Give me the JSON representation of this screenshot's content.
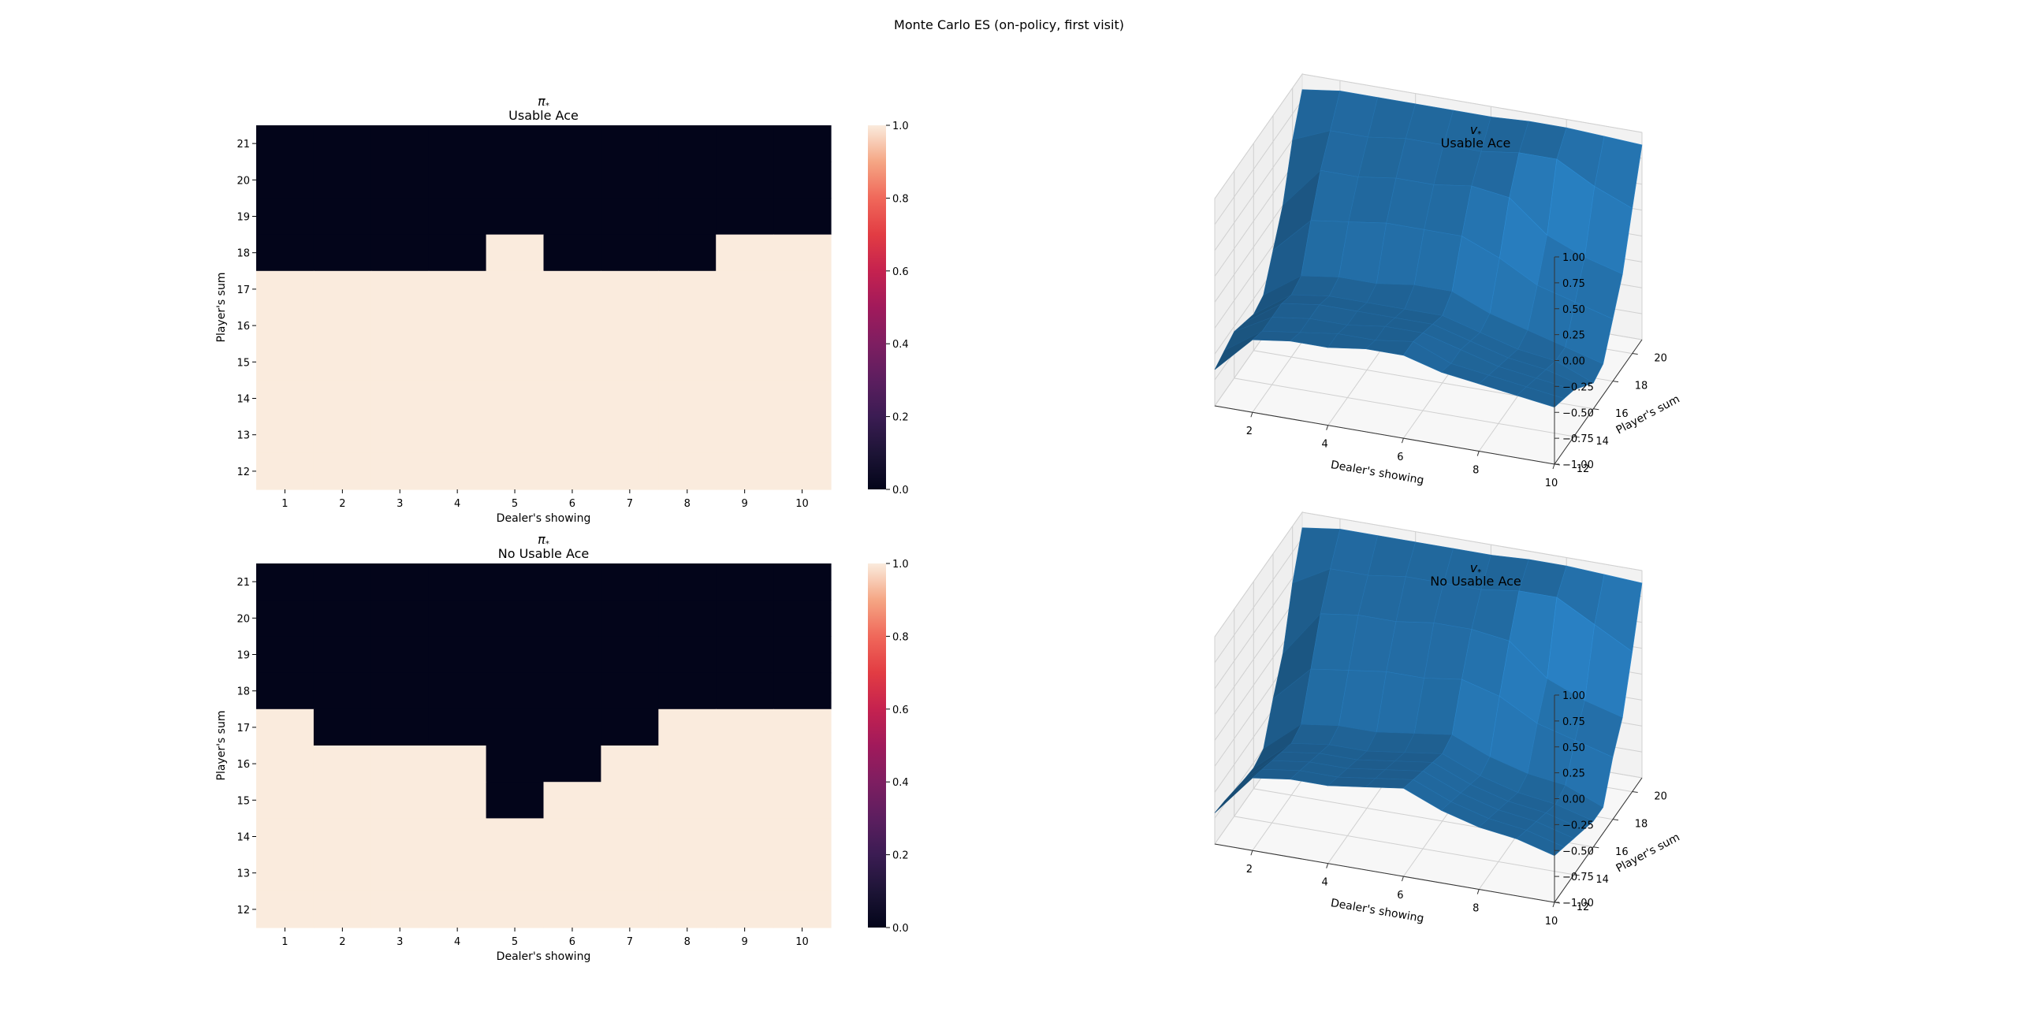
{
  "suptitle": "Monte Carlo ES (on-policy, first visit)",
  "colors": {
    "policy_low": "#03051a",
    "policy_high": "#faebdd",
    "surface": "#1f6193",
    "pane": "#f2f2f2",
    "grid": "#d0d0d0"
  },
  "chart_data": [
    {
      "type": "heatmap",
      "title_symbol": "π*",
      "title": "Usable Ace",
      "xlabel": "Dealer's showing",
      "ylabel": "Player's sum",
      "x_ticks": [
        "1",
        "2",
        "3",
        "4",
        "5",
        "6",
        "7",
        "8",
        "9",
        "10"
      ],
      "y_ticks": [
        "12",
        "13",
        "14",
        "15",
        "16",
        "17",
        "18",
        "19",
        "20",
        "21"
      ],
      "colorbar": {
        "range": [
          0,
          1
        ],
        "ticks": [
          "0.0",
          "0.2",
          "0.4",
          "0.6",
          "0.8",
          "1.0"
        ],
        "colormap": "rocket"
      },
      "rows_top_to_bottom": [
        [
          0,
          0,
          0,
          0,
          0,
          0,
          0,
          0,
          0,
          0
        ],
        [
          0,
          0,
          0,
          0,
          0,
          0,
          0,
          0,
          0,
          0
        ],
        [
          0,
          0,
          0,
          0,
          0,
          0,
          0,
          0,
          0,
          0
        ],
        [
          0,
          0,
          0,
          0,
          1,
          0,
          0,
          0,
          1,
          1
        ],
        [
          1,
          1,
          1,
          1,
          1,
          1,
          1,
          1,
          1,
          1
        ],
        [
          1,
          1,
          1,
          1,
          1,
          1,
          1,
          1,
          1,
          1
        ],
        [
          1,
          1,
          1,
          1,
          1,
          1,
          1,
          1,
          1,
          1
        ],
        [
          1,
          1,
          1,
          1,
          1,
          1,
          1,
          1,
          1,
          1
        ],
        [
          1,
          1,
          1,
          1,
          1,
          1,
          1,
          1,
          1,
          1
        ],
        [
          1,
          1,
          1,
          1,
          1,
          1,
          1,
          1,
          1,
          1
        ]
      ]
    },
    {
      "type": "heatmap",
      "title_symbol": "π*",
      "title": "No Usable Ace",
      "xlabel": "Dealer's showing",
      "ylabel": "Player's sum",
      "x_ticks": [
        "1",
        "2",
        "3",
        "4",
        "5",
        "6",
        "7",
        "8",
        "9",
        "10"
      ],
      "y_ticks": [
        "12",
        "13",
        "14",
        "15",
        "16",
        "17",
        "18",
        "19",
        "20",
        "21"
      ],
      "colorbar": {
        "range": [
          0,
          1
        ],
        "ticks": [
          "0.0",
          "0.2",
          "0.4",
          "0.6",
          "0.8",
          "1.0"
        ],
        "colormap": "rocket"
      },
      "rows_top_to_bottom": [
        [
          0,
          0,
          0,
          0,
          0,
          0,
          0,
          0,
          0,
          0
        ],
        [
          0,
          0,
          0,
          0,
          0,
          0,
          0,
          0,
          0,
          0
        ],
        [
          0,
          0,
          0,
          0,
          0,
          0,
          0,
          0,
          0,
          0
        ],
        [
          0,
          0,
          0,
          0,
          0,
          0,
          0,
          0,
          0,
          0
        ],
        [
          1,
          0,
          0,
          0,
          0,
          0,
          0,
          1,
          1,
          1
        ],
        [
          1,
          1,
          1,
          1,
          0,
          0,
          1,
          1,
          1,
          1
        ],
        [
          1,
          1,
          1,
          1,
          0,
          1,
          1,
          1,
          1,
          1
        ],
        [
          1,
          1,
          1,
          1,
          1,
          1,
          1,
          1,
          1,
          1
        ],
        [
          1,
          1,
          1,
          1,
          1,
          1,
          1,
          1,
          1,
          1
        ],
        [
          1,
          1,
          1,
          1,
          1,
          1,
          1,
          1,
          1,
          1
        ]
      ]
    },
    {
      "type": "surface3d",
      "title_symbol": "v*",
      "title": "Usable Ace",
      "xlabel": "Dealer's showing",
      "ylabel": "Player's sum",
      "x_ticks": [
        "2",
        "4",
        "6",
        "8",
        "10"
      ],
      "y_ticks": [
        "12",
        "14",
        "16",
        "18",
        "20"
      ],
      "z_ticks": [
        "1.00",
        "0.75",
        "0.50",
        "0.25",
        "0.00",
        "−0.25",
        "−0.50",
        "−0.75",
        "−1.00"
      ],
      "zlim": [
        -1,
        1
      ],
      "x_values": [
        1,
        2,
        3,
        4,
        5,
        6,
        7,
        8,
        9,
        10
      ],
      "y_values": [
        12,
        13,
        14,
        15,
        16,
        17,
        18,
        19,
        20,
        21
      ],
      "z_rows_by_player_sum": [
        [
          -0.65,
          -0.3,
          -0.25,
          -0.25,
          -0.2,
          -0.2,
          -0.3,
          -0.35,
          -0.4,
          -0.45
        ],
        [
          -0.6,
          -0.35,
          -0.3,
          -0.25,
          -0.25,
          -0.2,
          -0.35,
          -0.4,
          -0.45,
          -0.5
        ],
        [
          -0.55,
          -0.35,
          -0.3,
          -0.3,
          -0.25,
          -0.25,
          -0.35,
          -0.45,
          -0.5,
          -0.55
        ],
        [
          -0.6,
          -0.35,
          -0.3,
          -0.3,
          -0.3,
          -0.3,
          -0.4,
          -0.5,
          -0.55,
          -0.65
        ],
        [
          -0.65,
          -0.4,
          -0.35,
          -0.35,
          -0.35,
          -0.35,
          -0.45,
          -0.55,
          -0.6,
          -0.75
        ],
        [
          -0.6,
          -0.35,
          -0.3,
          -0.3,
          -0.25,
          -0.25,
          -0.4,
          -0.5,
          -0.6,
          -0.7
        ],
        [
          -0.3,
          0.05,
          0.1,
          0.15,
          0.15,
          0.15,
          0.0,
          -0.2,
          -0.3,
          -0.4
        ],
        [
          0.0,
          0.4,
          0.4,
          0.45,
          0.45,
          0.5,
          0.45,
          0.15,
          0.0,
          -0.1
        ],
        [
          0.5,
          0.65,
          0.65,
          0.7,
          0.7,
          0.7,
          0.75,
          0.75,
          0.55,
          0.4
        ],
        [
          0.85,
          0.9,
          0.9,
          0.9,
          0.9,
          0.9,
          0.92,
          0.92,
          0.9,
          0.88
        ]
      ]
    },
    {
      "type": "surface3d",
      "title_symbol": "v*",
      "title": "No Usable Ace",
      "xlabel": "Dealer's showing",
      "ylabel": "Player's sum",
      "x_ticks": [
        "2",
        "4",
        "6",
        "8",
        "10"
      ],
      "y_ticks": [
        "12",
        "14",
        "16",
        "18",
        "20"
      ],
      "z_ticks": [
        "1.00",
        "0.75",
        "0.50",
        "0.25",
        "0.00",
        "−0.25",
        "−0.50",
        "−0.75",
        "−1.00"
      ],
      "zlim": [
        -1,
        1
      ],
      "x_values": [
        1,
        2,
        3,
        4,
        5,
        6,
        7,
        8,
        9,
        10
      ],
      "y_values": [
        12,
        13,
        14,
        15,
        16,
        17,
        18,
        19,
        20,
        21
      ],
      "z_rows_by_player_sum": [
        [
          -0.7,
          -0.3,
          -0.25,
          -0.25,
          -0.2,
          -0.15,
          -0.3,
          -0.4,
          -0.45,
          -0.55
        ],
        [
          -0.72,
          -0.35,
          -0.3,
          -0.3,
          -0.25,
          -0.2,
          -0.35,
          -0.45,
          -0.5,
          -0.6
        ],
        [
          -0.75,
          -0.4,
          -0.35,
          -0.35,
          -0.3,
          -0.25,
          -0.4,
          -0.5,
          -0.55,
          -0.65
        ],
        [
          -0.78,
          -0.45,
          -0.4,
          -0.4,
          -0.35,
          -0.3,
          -0.45,
          -0.55,
          -0.6,
          -0.7
        ],
        [
          -0.8,
          -0.5,
          -0.45,
          -0.45,
          -0.4,
          -0.35,
          -0.5,
          -0.6,
          -0.65,
          -0.75
        ],
        [
          -0.75,
          -0.45,
          -0.4,
          -0.4,
          -0.35,
          -0.3,
          -0.45,
          -0.55,
          -0.6,
          -0.75
        ],
        [
          -0.4,
          -0.05,
          0.0,
          0.05,
          0.05,
          0.1,
          0.0,
          -0.2,
          -0.3,
          -0.4
        ],
        [
          -0.1,
          0.35,
          0.4,
          0.4,
          0.45,
          0.45,
          0.4,
          0.1,
          -0.05,
          -0.15
        ],
        [
          0.45,
          0.65,
          0.65,
          0.7,
          0.7,
          0.7,
          0.75,
          0.75,
          0.55,
          0.35
        ],
        [
          0.85,
          0.9,
          0.9,
          0.9,
          0.9,
          0.9,
          0.92,
          0.92,
          0.9,
          0.88
        ]
      ]
    }
  ]
}
